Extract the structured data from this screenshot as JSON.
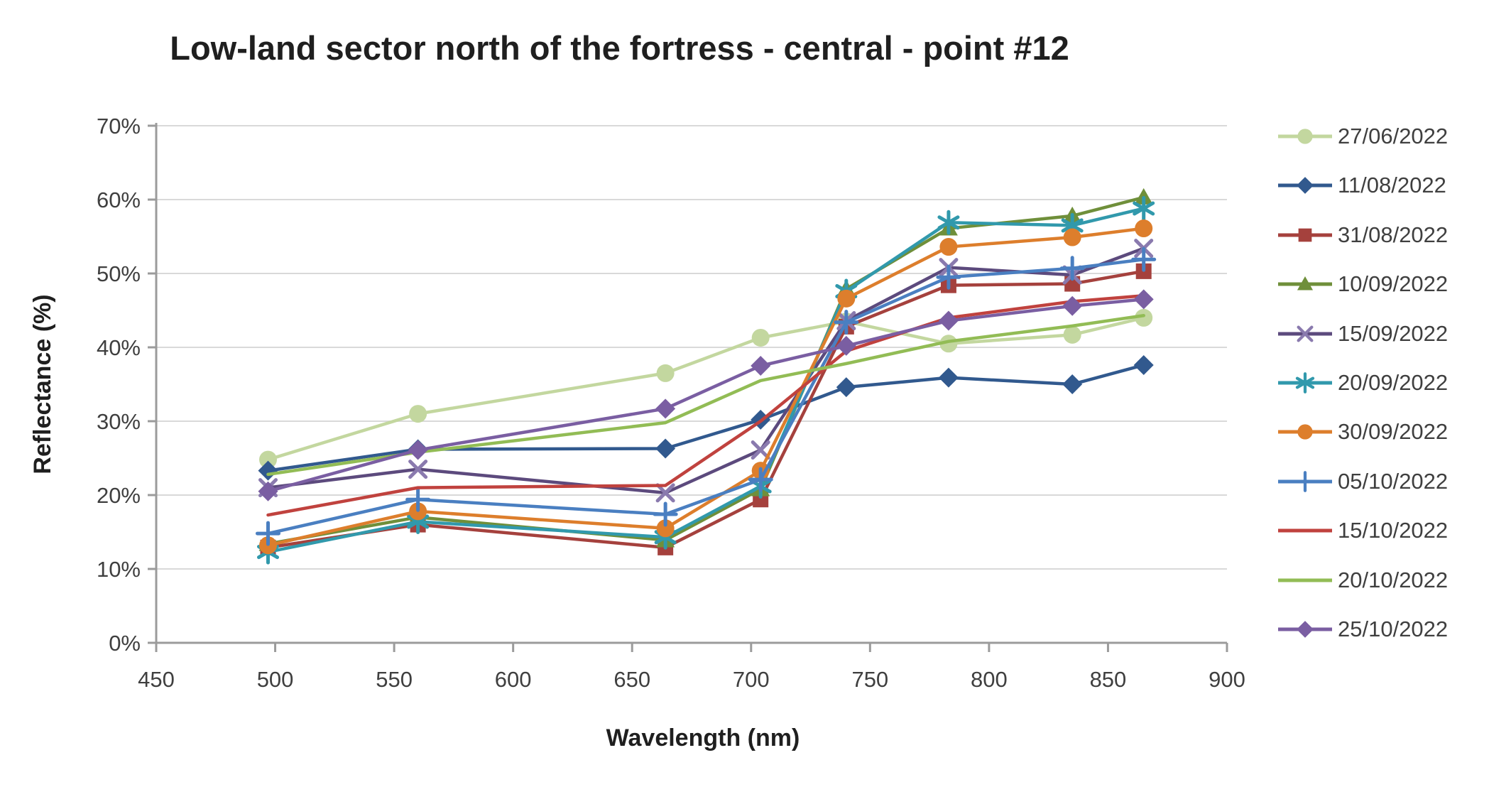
{
  "chart_data": {
    "type": "line",
    "title": "Low-land sector north of the fortress - central - point #12",
    "xlabel": "Wavelength (nm)",
    "ylabel": "Reflectance (%)",
    "xlim": [
      450,
      900
    ],
    "xtick_step": 50,
    "ylim": [
      0,
      70
    ],
    "ytick_step": 10,
    "ytick_suffix": "%",
    "grid": true,
    "legend_position": "right",
    "x": [
      497,
      560,
      664,
      704,
      740,
      783,
      835,
      865
    ],
    "series": [
      {
        "name": "27/06/2022",
        "color": "#C3D79F",
        "marker": "circle",
        "values": [
          24.8,
          31.0,
          36.5,
          41.3,
          43.5,
          40.5,
          41.7,
          44.0
        ]
      },
      {
        "name": "11/08/2022",
        "color": "#31598E",
        "marker": "diamond",
        "values": [
          23.3,
          26.2,
          26.3,
          30.2,
          34.6,
          35.9,
          35.0,
          37.6
        ]
      },
      {
        "name": "31/08/2022",
        "color": "#A5413D",
        "marker": "square",
        "values": [
          12.9,
          16.0,
          12.9,
          19.4,
          42.8,
          48.4,
          48.6,
          50.3
        ]
      },
      {
        "name": "10/09/2022",
        "color": "#6F8F3A",
        "marker": "triangle",
        "values": [
          13.4,
          17.0,
          13.9,
          20.8,
          47.9,
          56.1,
          57.8,
          60.3
        ]
      },
      {
        "name": "15/09/2022",
        "color": "#5C4A7D",
        "marker": "x",
        "marker_color": "#8A7AAE",
        "values": [
          21.0,
          23.5,
          20.3,
          26.1,
          43.6,
          50.8,
          49.8,
          53.4
        ]
      },
      {
        "name": "20/09/2022",
        "color": "#3199AC",
        "marker": "asterisk",
        "values": [
          12.3,
          16.4,
          14.3,
          21.2,
          47.6,
          56.9,
          56.5,
          58.8
        ]
      },
      {
        "name": "30/09/2022",
        "color": "#DD7E2C",
        "marker": "circle",
        "values": [
          13.2,
          17.8,
          15.5,
          23.3,
          46.6,
          53.6,
          54.9,
          56.1
        ]
      },
      {
        "name": "05/10/2022",
        "color": "#4A7FC1",
        "marker": "plus",
        "values": [
          14.8,
          19.4,
          17.4,
          22.1,
          43.4,
          49.5,
          50.7,
          51.9
        ]
      },
      {
        "name": "15/10/2022",
        "color": "#C0423E",
        "marker": "none",
        "values": [
          17.3,
          21.0,
          21.3,
          30.0,
          39.5,
          44.0,
          46.2,
          47.0
        ]
      },
      {
        "name": "20/10/2022",
        "color": "#92BC55",
        "marker": "none",
        "values": [
          22.8,
          25.8,
          29.8,
          35.5,
          37.8,
          40.8,
          42.9,
          44.3
        ]
      },
      {
        "name": "25/10/2022",
        "color": "#7A5EA2",
        "marker": "diamond",
        "values": [
          20.5,
          26.1,
          31.7,
          37.5,
          40.2,
          43.6,
          45.6,
          46.5
        ]
      }
    ],
    "colors": {
      "grid": "#D9D9D9",
      "axis": "#9B9B9B",
      "tick_text": "#3F3F3F",
      "title_text": "#1F1F1F"
    }
  }
}
